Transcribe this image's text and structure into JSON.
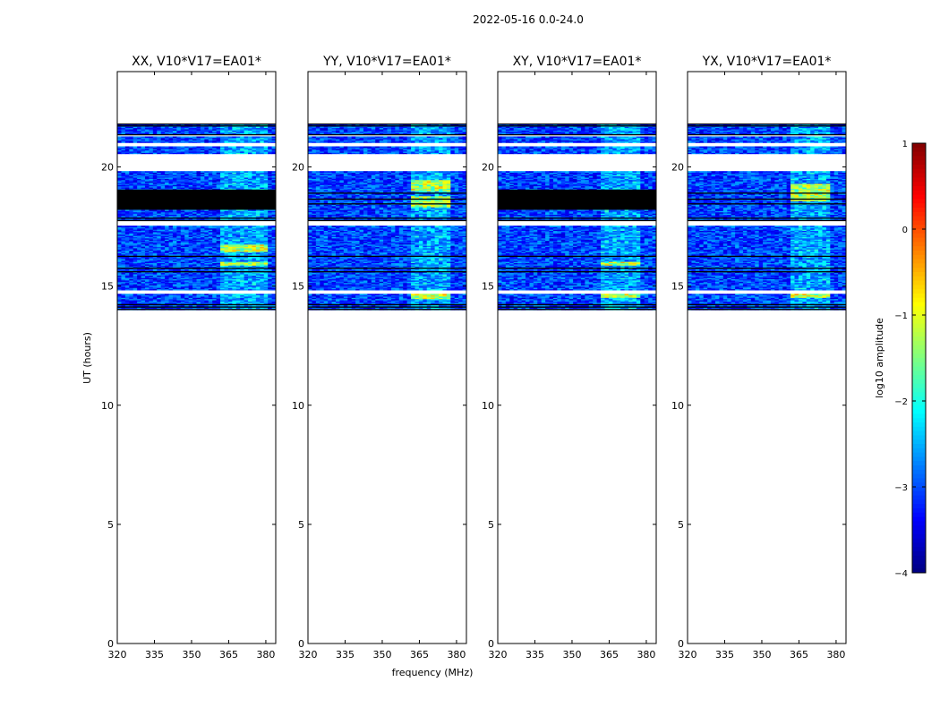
{
  "suptitle": "2022-05-16 0.0-24.0",
  "chart_data": {
    "type": "heatmap",
    "title": "2022-05-16 0.0-24.0",
    "xlabel": "frequency (MHz)",
    "ylabel": "UT (hours)",
    "xlim": [
      320,
      384
    ],
    "ylim": [
      0,
      24
    ],
    "xticks": [
      320,
      335,
      350,
      365,
      380
    ],
    "yticks": [
      0,
      5,
      10,
      15,
      20
    ],
    "data_time_range": [
      14.0,
      21.8
    ],
    "colorbar": {
      "label": "log10 amplitude",
      "range": [
        -4,
        1
      ],
      "ticks": [
        1,
        0,
        -1,
        -2,
        -3,
        -4
      ],
      "colormap": "jet"
    },
    "panels": [
      {
        "title": "XX, V10*V17=EA01*",
        "flagged_bands": [
          [
            14.68,
            14.82
          ],
          [
            17.55,
            17.75
          ],
          [
            19.85,
            20.55
          ],
          [
            20.85,
            21.0
          ],
          [
            21.3,
            21.38
          ]
        ],
        "saturated_bands": [
          [
            18.2,
            19.05
          ]
        ],
        "black_lines": [
          14.02,
          14.12,
          14.22,
          15.6,
          15.75,
          16.25,
          17.75,
          17.85,
          21.35,
          21.72,
          21.8
        ],
        "bright_bands": [
          [
            15.85,
            16.05
          ],
          [
            16.45,
            16.75
          ]
        ],
        "bright_channel_range": [
          362,
          380
        ]
      },
      {
        "title": "YY, V10*V17=EA01*",
        "flagged_bands": [
          [
            14.68,
            14.82
          ],
          [
            17.55,
            17.75
          ],
          [
            19.85,
            20.55
          ],
          [
            20.85,
            21.0
          ],
          [
            21.3,
            21.38
          ]
        ],
        "saturated_bands": [],
        "black_lines": [
          14.02,
          14.12,
          14.22,
          15.6,
          15.75,
          16.25,
          17.75,
          17.85,
          18.45,
          18.65,
          18.9,
          21.35,
          21.72,
          21.8
        ],
        "bright_bands": [
          [
            14.45,
            14.7
          ],
          [
            18.3,
            18.8
          ],
          [
            19.0,
            19.45
          ]
        ],
        "bright_channel_range": [
          362,
          378
        ]
      },
      {
        "title": "XY, V10*V17=EA01*",
        "flagged_bands": [
          [
            14.68,
            14.82
          ],
          [
            17.55,
            17.75
          ],
          [
            19.85,
            20.55
          ],
          [
            20.85,
            21.0
          ],
          [
            21.3,
            21.38
          ]
        ],
        "saturated_bands": [
          [
            18.2,
            19.05
          ]
        ],
        "black_lines": [
          14.02,
          14.12,
          14.22,
          15.6,
          15.75,
          16.25,
          17.75,
          17.85,
          21.35,
          21.72,
          21.8
        ],
        "bright_bands": [
          [
            15.85,
            16.05
          ],
          [
            14.5,
            14.7
          ]
        ],
        "bright_channel_range": [
          362,
          378
        ]
      },
      {
        "title": "YX, V10*V17=EA01*",
        "flagged_bands": [
          [
            14.68,
            14.82
          ],
          [
            17.55,
            17.75
          ],
          [
            19.85,
            20.55
          ],
          [
            20.85,
            21.0
          ],
          [
            21.3,
            21.38
          ]
        ],
        "saturated_bands": [],
        "black_lines": [
          14.02,
          14.12,
          14.22,
          15.6,
          15.75,
          16.25,
          17.75,
          17.85,
          18.45,
          18.65,
          18.9,
          21.35,
          21.72,
          21.8
        ],
        "bright_bands": [
          [
            18.6,
            19.3
          ],
          [
            14.5,
            14.7
          ]
        ],
        "bright_channel_range": [
          362,
          378
        ]
      }
    ]
  }
}
